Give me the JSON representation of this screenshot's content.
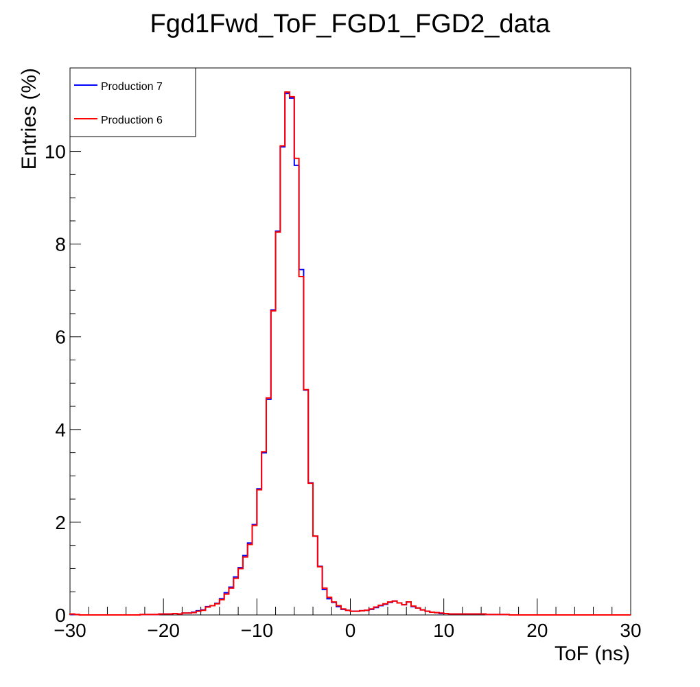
{
  "chart_data": {
    "type": "line",
    "title": "Fgd1Fwd_ToF_FGD1_FGD2_data",
    "xlabel": "ToF (ns)",
    "ylabel": "Entries (%)",
    "xlim": [
      -30,
      30
    ],
    "ylim": [
      0,
      11.8
    ],
    "x_ticks": [
      -30,
      -20,
      -10,
      0,
      10,
      20,
      30
    ],
    "x_tick_labels": [
      "−30",
      "−20",
      "−10",
      "0",
      "10",
      "20",
      "30"
    ],
    "y_ticks": [
      0,
      2,
      4,
      6,
      8,
      10
    ],
    "y_tick_labels": [
      "0",
      "2",
      "4",
      "6",
      "8",
      "10"
    ],
    "bin_width": 0.5,
    "grid": false,
    "legend_position": "top-left",
    "series": [
      {
        "name": "Production 7",
        "color": "#0000ff",
        "values": [
          0.01,
          0.01,
          0.0,
          0.0,
          0.0,
          0.0,
          0.0,
          0.0,
          0.0,
          0.0,
          0.0,
          0.0,
          0.0,
          0.0,
          0.0,
          0.01,
          0.01,
          0.01,
          0.01,
          0.02,
          0.02,
          0.02,
          0.03,
          0.02,
          0.04,
          0.04,
          0.06,
          0.09,
          0.11,
          0.18,
          0.2,
          0.25,
          0.35,
          0.48,
          0.6,
          0.82,
          1.02,
          1.28,
          1.55,
          1.95,
          2.72,
          3.5,
          4.65,
          6.58,
          8.28,
          10.1,
          11.25,
          11.15,
          9.7,
          7.45,
          4.85,
          2.85,
          1.7,
          1.05,
          0.55,
          0.35,
          0.27,
          0.18,
          0.12,
          0.1,
          0.08,
          0.08,
          0.09,
          0.1,
          0.12,
          0.16,
          0.2,
          0.23,
          0.27,
          0.3,
          0.26,
          0.22,
          0.28,
          0.18,
          0.15,
          0.11,
          0.08,
          0.06,
          0.05,
          0.03,
          0.03,
          0.02,
          0.02,
          0.02,
          0.02,
          0.02,
          0.02,
          0.02,
          0.02,
          0.01,
          0.01,
          0.01,
          0.01,
          0.01,
          0.0,
          0.0,
          0.0,
          0.0,
          0.0,
          0.0,
          0.0,
          0.0,
          0.0,
          0.0,
          0.0,
          0.0,
          0.0,
          0.0,
          0.0,
          0.0,
          0.0,
          0.0,
          0.0,
          0.0,
          0.0,
          0.0,
          0.0,
          0.0,
          0.0,
          0.0
        ]
      },
      {
        "name": "Production 6",
        "color": "#ff0000",
        "values": [
          0.02,
          0.01,
          0.0,
          0.0,
          0.0,
          0.0,
          0.0,
          0.0,
          0.0,
          0.0,
          0.0,
          0.0,
          0.0,
          0.0,
          0.0,
          0.01,
          0.01,
          0.01,
          0.01,
          0.02,
          0.02,
          0.02,
          0.03,
          0.02,
          0.04,
          0.04,
          0.05,
          0.08,
          0.1,
          0.17,
          0.2,
          0.24,
          0.33,
          0.45,
          0.58,
          0.79,
          1.0,
          1.25,
          1.52,
          1.93,
          2.7,
          3.52,
          4.68,
          6.56,
          8.26,
          10.12,
          11.28,
          11.18,
          9.85,
          7.3,
          4.86,
          2.84,
          1.7,
          1.04,
          0.58,
          0.38,
          0.28,
          0.2,
          0.13,
          0.1,
          0.08,
          0.08,
          0.09,
          0.1,
          0.13,
          0.17,
          0.21,
          0.24,
          0.28,
          0.3,
          0.26,
          0.22,
          0.28,
          0.19,
          0.15,
          0.11,
          0.08,
          0.06,
          0.05,
          0.04,
          0.03,
          0.02,
          0.02,
          0.02,
          0.02,
          0.02,
          0.02,
          0.02,
          0.02,
          0.01,
          0.01,
          0.01,
          0.01,
          0.01,
          0.0,
          0.0,
          0.0,
          0.0,
          0.0,
          0.0,
          0.0,
          0.0,
          0.0,
          0.0,
          0.0,
          0.0,
          0.0,
          0.0,
          0.0,
          0.0,
          0.0,
          0.0,
          0.0,
          0.0,
          0.0,
          0.0,
          0.0,
          0.0,
          0.0,
          0.0
        ]
      }
    ]
  }
}
